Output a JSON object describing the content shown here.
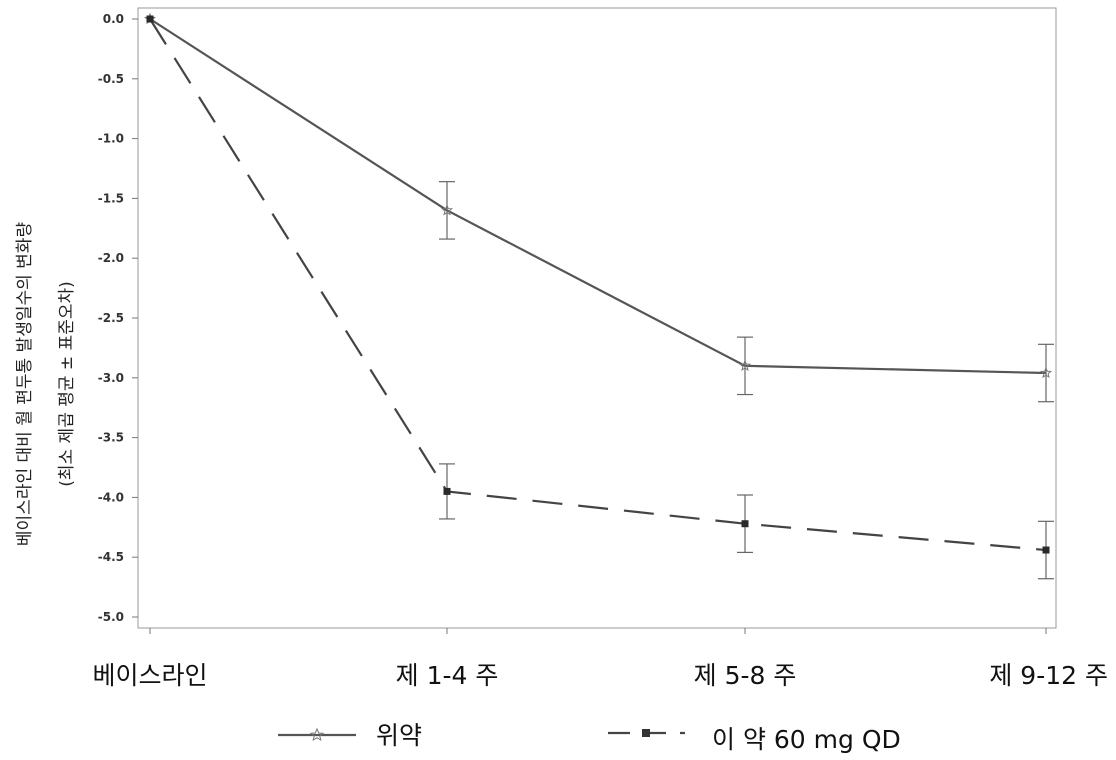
{
  "chart_data": {
    "type": "line",
    "categories": [
      "베이스라인",
      "제 1-4 주",
      "제 5-8 주",
      "제 9-12 주"
    ],
    "ylabel_line1": "베이스라인 대비 월 편두통 발생일수의 변화량",
    "ylabel_line2": "(최소 제곱 평균 ± 표준오차)",
    "ylim": [
      -5.0,
      0.0
    ],
    "yticks": [
      "0.0",
      "-0.5",
      "-1.0",
      "-1.5",
      "-2.0",
      "-2.5",
      "-3.0",
      "-3.5",
      "-4.0",
      "-4.5",
      "-5.0"
    ],
    "grid": false,
    "legend_position": "bottom",
    "series": [
      {
        "name": "위약",
        "marker": "star",
        "line_style": "solid",
        "color": "#555555",
        "values": [
          0.0,
          -1.6,
          -2.9,
          -2.96
        ],
        "error": [
          0.0,
          0.24,
          0.24,
          0.24
        ]
      },
      {
        "name": "이 약 60 mg QD",
        "marker": "square",
        "line_style": "dashed",
        "color": "#444444",
        "values": [
          0.0,
          -3.95,
          -4.22,
          -4.44
        ],
        "error": [
          0.0,
          0.23,
          0.24,
          0.24
        ]
      }
    ]
  }
}
